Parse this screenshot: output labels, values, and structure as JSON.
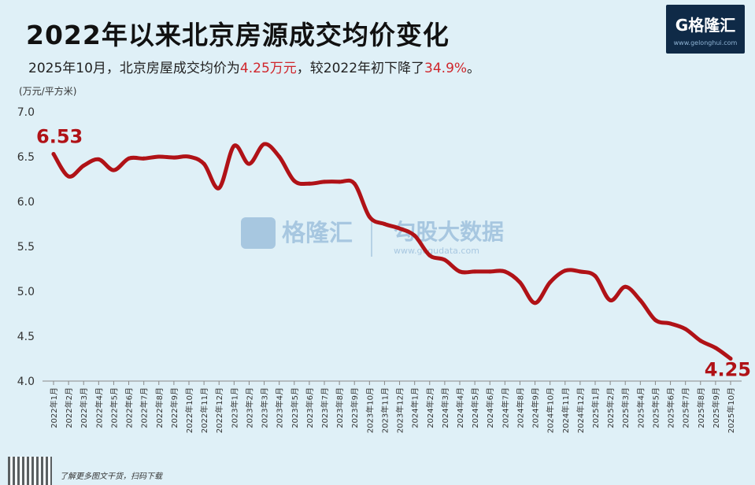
{
  "header": {
    "title": "2022年以来北京房源成交均价变化",
    "subtitle_pre": "2025年10月，北京房屋成交均价为",
    "subtitle_price": "4.25万元",
    "subtitle_mid": "，较2022年初下降了",
    "subtitle_pct": "34.9%",
    "subtitle_post": "。"
  },
  "logo": {
    "brand": "G格隆汇",
    "url": "www.gelonghui.com"
  },
  "watermark": {
    "brand1": "格隆汇",
    "brand2": "勾股大数据",
    "url2": "www.gogudata.com"
  },
  "footer": {
    "note": "了解更多图文干货，扫码下载"
  },
  "colors": {
    "background": "#dff0f7",
    "line": "#b01217",
    "highlight": "#d0262c"
  },
  "chart_data": {
    "type": "line",
    "title": "2022年以来北京房源成交均价变化",
    "ylabel": "(万元/平方米)",
    "xlabel": "",
    "ylim": [
      4.0,
      7.0
    ],
    "yticks": [
      "4.0",
      "4.5",
      "5.0",
      "5.5",
      "6.0",
      "6.5",
      "7.0"
    ],
    "grid": false,
    "categories": [
      "2022年1月",
      "2022年2月",
      "2022年3月",
      "2022年4月",
      "2022年5月",
      "2022年6月",
      "2022年7月",
      "2022年8月",
      "2022年9月",
      "2022年10月",
      "2022年11月",
      "2022年12月",
      "2023年1月",
      "2023年2月",
      "2023年3月",
      "2023年4月",
      "2023年5月",
      "2023年6月",
      "2023年7月",
      "2023年8月",
      "2023年9月",
      "2023年10月",
      "2023年11月",
      "2023年12月",
      "2024年1月",
      "2024年2月",
      "2024年3月",
      "2024年4月",
      "2024年5月",
      "2024年6月",
      "2024年7月",
      "2024年8月",
      "2024年9月",
      "2024年10月",
      "2024年11月",
      "2024年12月",
      "2025年1月",
      "2025年2月",
      "2025年3月",
      "2025年4月",
      "2025年5月",
      "2025年6月",
      "2025年7月",
      "2025年8月",
      "2025年9月",
      "2025年10月"
    ],
    "series": [
      {
        "values": [
          6.53,
          6.28,
          6.4,
          6.47,
          6.35,
          6.48,
          6.48,
          6.5,
          6.49,
          6.5,
          6.42,
          6.15,
          6.62,
          6.42,
          6.64,
          6.5,
          6.23,
          6.2,
          6.22,
          6.22,
          6.2,
          5.83,
          5.75,
          5.7,
          5.62,
          5.4,
          5.35,
          5.22,
          5.22,
          5.22,
          5.22,
          5.1,
          4.87,
          5.1,
          5.23,
          5.22,
          5.17,
          4.9,
          5.05,
          4.9,
          4.68,
          4.64,
          4.58,
          4.45,
          4.37,
          4.25
        ]
      }
    ],
    "annotations": [
      {
        "category": "2022年1月",
        "text": "6.53"
      },
      {
        "category": "2025年10月",
        "text": "4.25"
      }
    ]
  }
}
